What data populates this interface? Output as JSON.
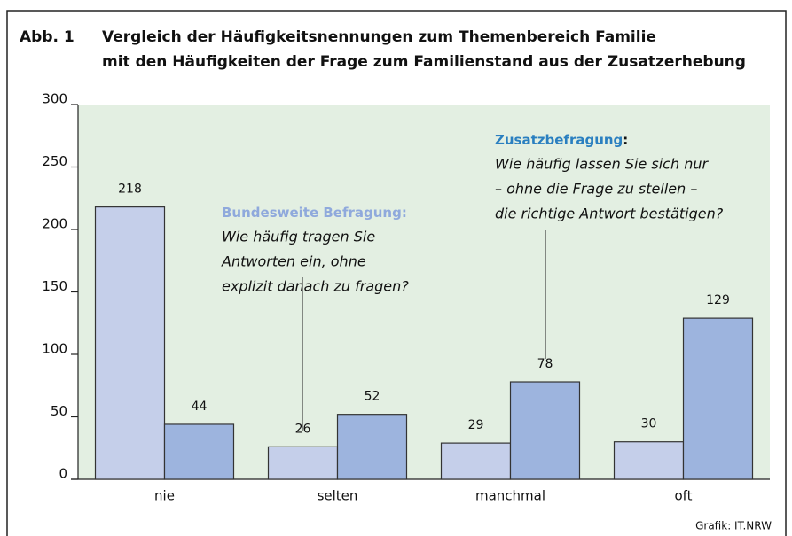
{
  "chart_data": {
    "type": "bar",
    "title_lines": [
      "Abb. 1",
      "Vergleich der Häufigkeitsnennungen zum Themenbereich Familie",
      "mit den Häufigkeiten der Frage zum Familienstand aus der Zusatzerhebung"
    ],
    "categories": [
      "nie",
      "selten",
      "manchmal",
      "oft"
    ],
    "series": [
      {
        "name": "Bundesweite Befragung:",
        "color": "#c5cfea",
        "values": [
          218,
          26,
          29,
          30
        ]
      },
      {
        "name": "Zusatzbefragung",
        "color": "#9db4de",
        "values": [
          44,
          52,
          78,
          129
        ]
      }
    ],
    "annotations": [
      {
        "lines": [
          "Wie häufig tragen Sie",
          "Antworten ein, ohne",
          "explizit danach zu fragen?"
        ]
      },
      {
        "suffix": ":",
        "lines": [
          "Wie häufig lassen Sie sich nur",
          "– ohne die Frage zu stellen –",
          "die richtige Antwort bestätigen?"
        ]
      }
    ],
    "ylim": [
      0,
      300
    ],
    "yticks": [
      0,
      50,
      100,
      150,
      200,
      250,
      300
    ],
    "source": "Grafik: IT.NRW"
  }
}
